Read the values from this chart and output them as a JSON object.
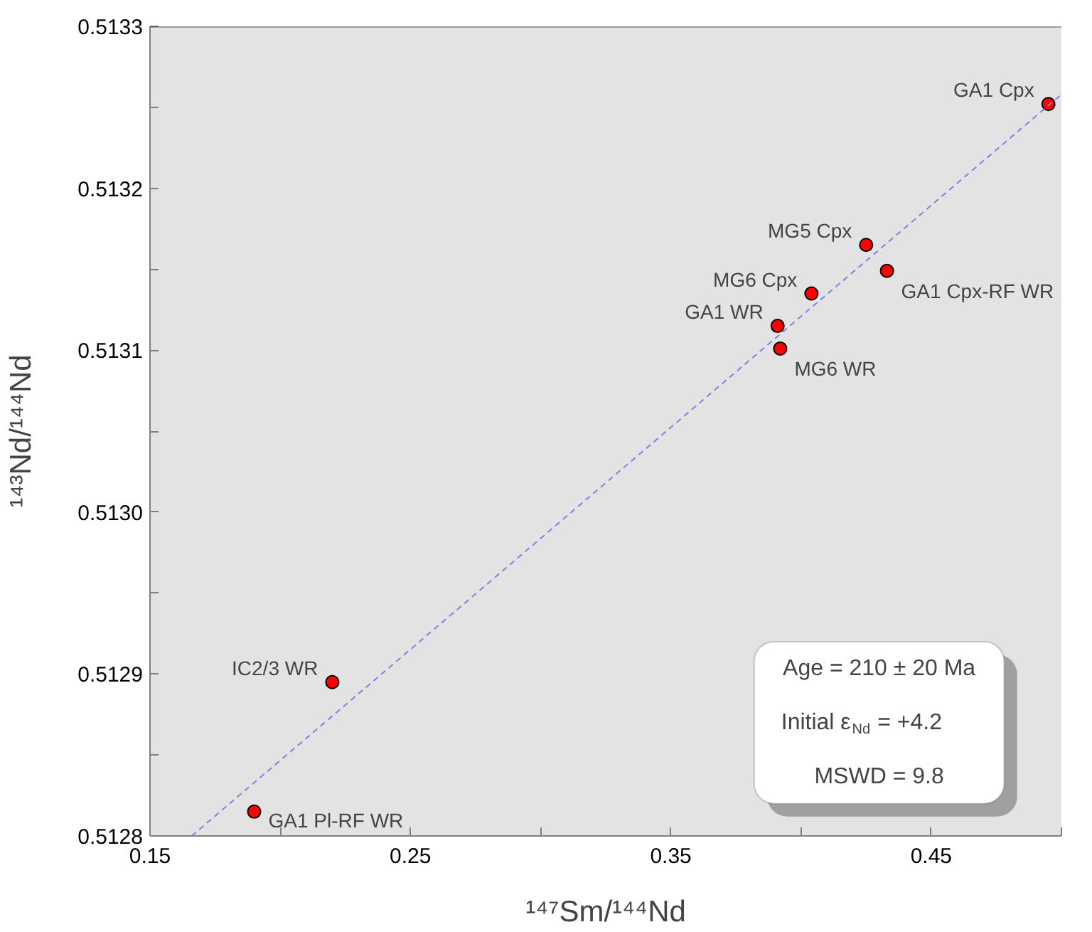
{
  "chart_data": {
    "type": "scatter",
    "xlabel": "¹⁴⁷Sm/¹⁴⁴Nd",
    "ylabel": "¹⁴³Nd/¹⁴⁴Nd",
    "xlim": [
      0.15,
      0.5
    ],
    "ylim": [
      0.5128,
      0.5133
    ],
    "xticks": [
      0.15,
      {
        "value": 0.2,
        "label": null
      },
      0.25,
      {
        "value": 0.3,
        "label": null
      },
      0.35,
      {
        "value": 0.4,
        "label": null
      },
      0.45,
      {
        "value": 0.5,
        "label": null
      }
    ],
    "yticks": [
      0.5128,
      {
        "value": 0.51285,
        "label": null
      },
      0.5129,
      {
        "value": 0.51295,
        "label": null
      },
      {
        "value": 0.513,
        "label": "0.5130"
      },
      {
        "value": 0.51305,
        "label": null
      },
      0.5131,
      {
        "value": 0.51315,
        "label": null
      },
      0.5132,
      {
        "value": 0.51325,
        "label": null
      },
      0.5133
    ],
    "series": [
      {
        "marker": "circle",
        "color": "#ff0000",
        "x": [
          0.495,
          0.425,
          0.433,
          0.404,
          0.391,
          0.392,
          0.22,
          0.19
        ],
        "values": [
          0.513252,
          0.513165,
          0.513149,
          0.513135,
          0.513115,
          0.513101,
          0.512895,
          0.512815
        ]
      },
      {
        "type": "line",
        "color": "#8080e0",
        "line_style": "dashed",
        "x": [
          0.166,
          0.5
        ],
        "values": [
          0.5128,
          0.513258
        ]
      }
    ],
    "annotations": [
      {
        "text": "GA1 Cpx",
        "x": 0.495,
        "y": 0.513252
      },
      {
        "text": "MG5 Cpx",
        "x": 0.425,
        "y": 0.513165
      },
      {
        "text": "GA1 Cpx-RF WR",
        "x": 0.433,
        "y": 0.513149
      },
      {
        "text": "MG6 Cpx",
        "x": 0.404,
        "y": 0.513135
      },
      {
        "text": "GA1 WR",
        "x": 0.391,
        "y": 0.513115
      },
      {
        "text": "MG6 WR",
        "x": 0.392,
        "y": 0.513101
      },
      {
        "text": "IC2/3 WR",
        "x": 0.22,
        "y": 0.512895
      },
      {
        "text": "GA1 Pl-RF WR",
        "x": 0.19,
        "y": 0.512815
      },
      "Age = 210 ± 20 Ma",
      "Initial ε$_{Nd}$ = +4.2",
      "MSWD = 9.8"
    ]
  }
}
